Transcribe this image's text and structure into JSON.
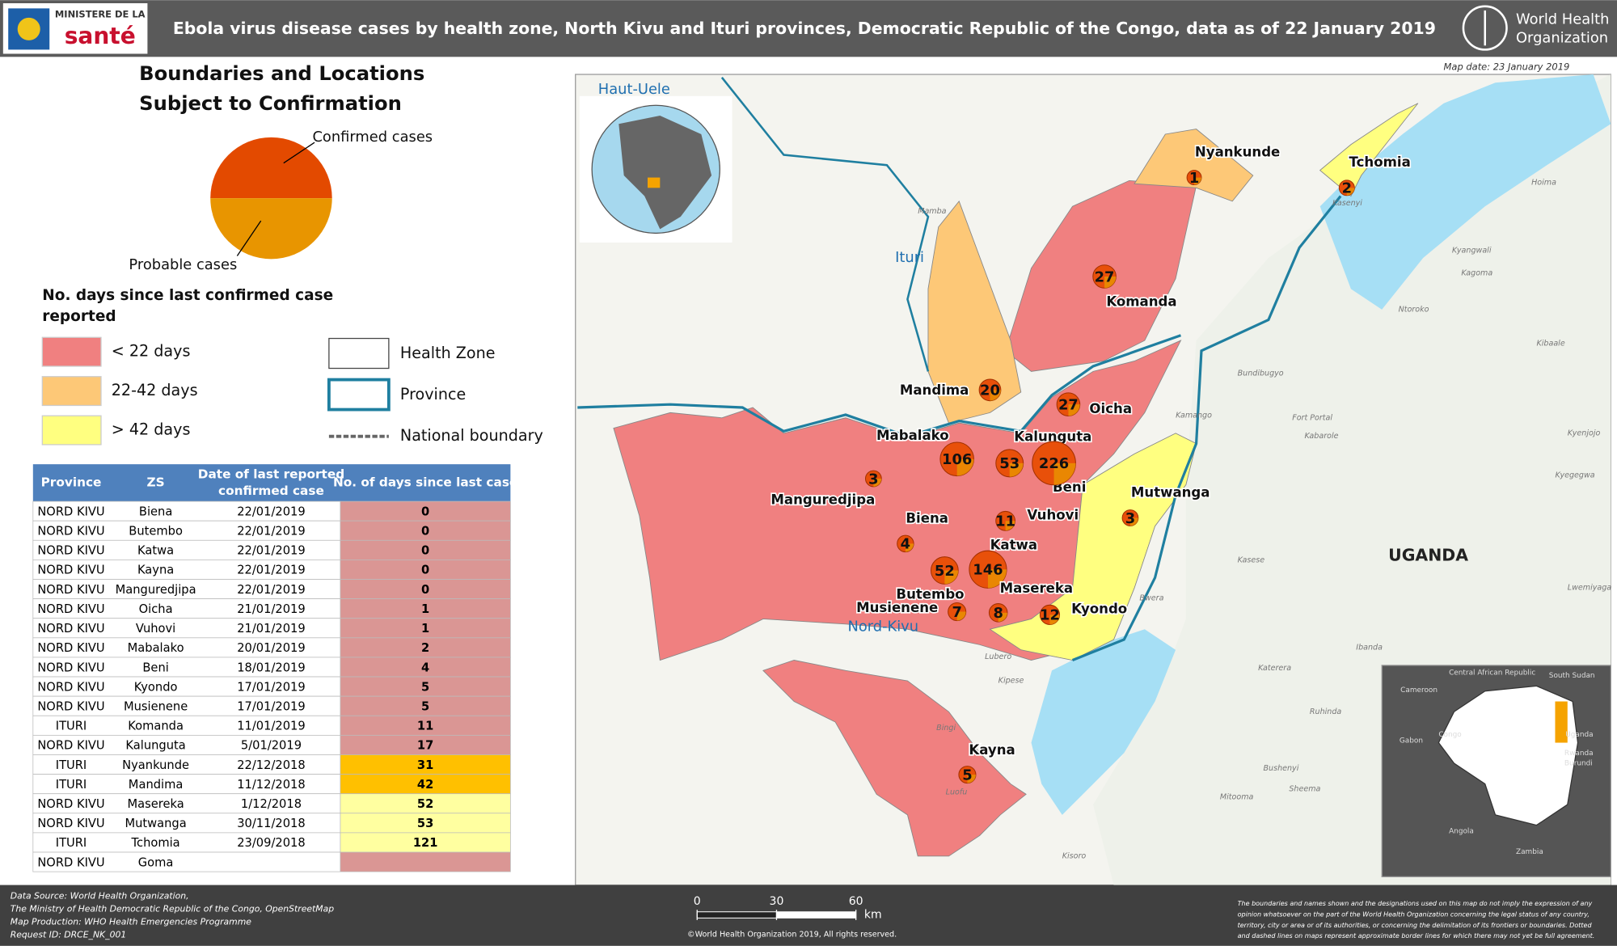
{
  "header": {
    "ministry_top": "MINISTERE DE LA",
    "ministry_name": "santé",
    "title": "Ebola virus disease cases by health zone, North Kivu and Ituri provinces, Democratic Republic of the Congo, data as of 22 January 2019",
    "who": [
      "World Health",
      "Organization"
    ]
  },
  "map_date": "Map date: 23 January 2019",
  "legend": {
    "heading": [
      "Boundaries and Locations",
      "Subject to Confirmation"
    ],
    "confirmed": "Confirmed cases",
    "probable": "Probable cases",
    "days_title": [
      "No. days since last confirmed case",
      "reported"
    ],
    "days": [
      {
        "label": "< 22 days",
        "color": "#f08080"
      },
      {
        "label": "22-42 days",
        "color": "#fdc877"
      },
      {
        "label": "> 42 days",
        "color": "#ffff80"
      }
    ],
    "lines": [
      "Health Zone",
      "Province",
      "National boundary"
    ]
  },
  "table": {
    "columns": [
      [
        "Province"
      ],
      [
        "ZS"
      ],
      [
        "Date of last reported",
        "confirmed case"
      ],
      [
        "No. of days since last case"
      ]
    ],
    "rows": [
      {
        "cells": [
          "NORD KIVU",
          "Biena",
          "22/01/2019",
          0
        ],
        "color": "#da9694"
      },
      {
        "cells": [
          "NORD KIVU",
          "Butembo",
          "22/01/2019",
          0
        ],
        "color": "#da9694"
      },
      {
        "cells": [
          "NORD KIVU",
          "Katwa",
          "22/01/2019",
          0
        ],
        "color": "#da9694"
      },
      {
        "cells": [
          "NORD KIVU",
          "Kayna",
          "22/01/2019",
          0
        ],
        "color": "#da9694"
      },
      {
        "cells": [
          "NORD KIVU",
          "Manguredjipa",
          "22/01/2019",
          0
        ],
        "color": "#da9694"
      },
      {
        "cells": [
          "NORD KIVU",
          "Oicha",
          "21/01/2019",
          1
        ],
        "color": "#da9694"
      },
      {
        "cells": [
          "NORD KIVU",
          "Vuhovi",
          "21/01/2019",
          1
        ],
        "color": "#da9694"
      },
      {
        "cells": [
          "NORD KIVU",
          "Mabalako",
          "20/01/2019",
          2
        ],
        "color": "#da9694"
      },
      {
        "cells": [
          "NORD KIVU",
          "Beni",
          "18/01/2019",
          4
        ],
        "color": "#da9694"
      },
      {
        "cells": [
          "NORD KIVU",
          "Kyondo",
          "17/01/2019",
          5
        ],
        "color": "#da9694"
      },
      {
        "cells": [
          "NORD KIVU",
          "Musienene",
          "17/01/2019",
          5
        ],
        "color": "#da9694"
      },
      {
        "cells": [
          "ITURI",
          "Komanda",
          "11/01/2019",
          11
        ],
        "color": "#da9694"
      },
      {
        "cells": [
          "NORD KIVU",
          "Kalunguta",
          "5/01/2019",
          17
        ],
        "color": "#da9694"
      },
      {
        "cells": [
          "ITURI",
          "Nyankunde",
          "22/12/2018",
          31
        ],
        "color": "#ffc000"
      },
      {
        "cells": [
          "ITURI",
          "Mandima",
          "11/12/2018",
          42
        ],
        "color": "#ffc000"
      },
      {
        "cells": [
          "NORD KIVU",
          "Masereka",
          "1/12/2018",
          52
        ],
        "color": "#ffffa0"
      },
      {
        "cells": [
          "NORD KIVU",
          "Mutwanga",
          "30/11/2018",
          53
        ],
        "color": "#ffffa0"
      },
      {
        "cells": [
          "ITURI",
          "Tchomia",
          "23/09/2018",
          121
        ],
        "color": "#ffffa0"
      },
      {
        "cells": [
          "NORD KIVU",
          "Goma",
          "",
          null
        ],
        "color": "#da9694"
      }
    ]
  },
  "zones": [
    {
      "name": "Nyankunde",
      "cases": 1
    },
    {
      "name": "Tchomia",
      "cases": 2
    },
    {
      "name": "Komanda",
      "cases": 27
    },
    {
      "name": "Mandima",
      "cases": 20
    },
    {
      "name": "Oicha",
      "cases": 27
    },
    {
      "name": "Mabalako",
      "cases": 106
    },
    {
      "name": "Kalunguta",
      "cases": 53
    },
    {
      "name": "Beni",
      "cases": 226
    },
    {
      "name": "Manguredjipa",
      "cases": 3
    },
    {
      "name": "Mutwanga",
      "cases": 3
    },
    {
      "name": "Vuhovi",
      "cases": 11
    },
    {
      "name": "Biena",
      "cases": 4
    },
    {
      "name": "Katwa",
      "cases": 146
    },
    {
      "name": "Butembo",
      "cases": 52
    },
    {
      "name": "Musienene",
      "cases": 7
    },
    {
      "name": "Masereka",
      "cases": 8
    },
    {
      "name": "Kyondo",
      "cases": 12
    },
    {
      "name": "Kayna",
      "cases": 5
    }
  ],
  "provinces": [
    "Haut-Uele",
    "Ituri",
    "Nord-Kivu"
  ],
  "country": "UGANDA",
  "places": [
    "Mamba",
    "Kasenyi",
    "Kyangwali",
    "Kagoma",
    "Hoima",
    "Ntoroko",
    "Kibaale",
    "Bundibugyo",
    "Kamango",
    "Fort Portal",
    "Kabarole",
    "Kyenjojo",
    "Kyegegwa",
    "Kasese",
    "Bwera",
    "Lwemiyaga",
    "Lubero",
    "Kipese",
    "Bingi",
    "Luofu",
    "Katerera",
    "Ibanda",
    "Bushenyi",
    "Mitooma",
    "Sheema",
    "Ruhinda",
    "Kisoro"
  ],
  "inset": [
    "Cameroon",
    "Central African Republic",
    "South Sudan",
    "Gabon",
    "Congo",
    "Uganda",
    "Rwanda",
    "Burundi",
    "Angola",
    "Zambia"
  ],
  "footer": {
    "source": [
      "Data Source: World Health Organization,",
      "The Ministry of Health Democratic Republic of the Congo, OpenStreetMap",
      "Map Production: WHO Health Emergencies Programme",
      "Request ID: DRCE_NK_001"
    ],
    "scale": {
      "ticks": [
        0,
        30,
        60
      ],
      "unit": "km"
    },
    "copyright": "©World Health Organization 2019, All rights reserved.",
    "disclaimer": [
      "The boundaries and names shown and the designations used on this map do not imply the expression of any",
      "opinion whatsoever on the part of the World Health Organization concerning the legal status of any country,",
      "territory, city or area or of its authorities, or concerning the delimitation of its frontiers or boundaries. Dotted",
      "and dashed lines on maps represent approximate border lines for which there may not yet be full agreement."
    ]
  }
}
